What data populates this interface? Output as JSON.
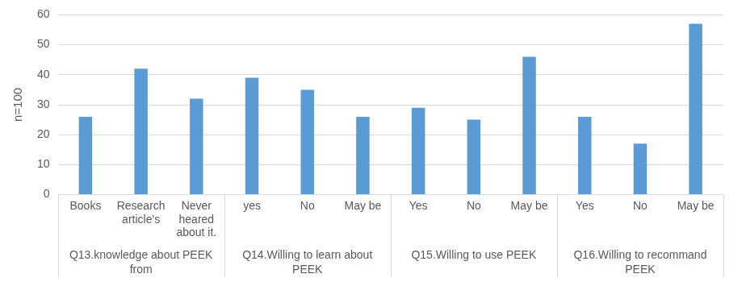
{
  "chart_data": {
    "type": "bar",
    "ylabel": "n=100",
    "groups": [
      {
        "label": "Q13.knowledge about PEEK from",
        "categories": [
          "Books",
          "Research article's",
          "Never heared about it."
        ],
        "values": [
          26,
          42,
          32
        ]
      },
      {
        "label": "Q14.Willing to learn about PEEK",
        "categories": [
          "yes",
          "No",
          "May be"
        ],
        "values": [
          39,
          35,
          26
        ]
      },
      {
        "label": "Q15.Willing to use PEEK",
        "categories": [
          "Yes",
          "No",
          "May be"
        ],
        "values": [
          29,
          25,
          46
        ]
      },
      {
        "label": "Q16.Willing to recommand PEEK",
        "categories": [
          "Yes",
          "No",
          "May be"
        ],
        "values": [
          26,
          17,
          57
        ]
      }
    ],
    "color": "#5b9bd5",
    "ylim": [
      0,
      60
    ],
    "yticks": [
      0,
      10,
      20,
      30,
      40,
      50,
      60
    ],
    "grid": true
  }
}
